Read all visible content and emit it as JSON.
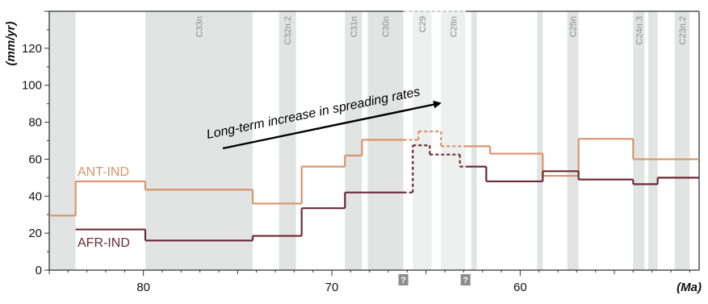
{
  "chart_data": {
    "type": "line",
    "xlabel": "(Ma)",
    "ylabel": "(mm/yr)",
    "xlim": [
      85,
      50.5
    ],
    "ylim": [
      0,
      140
    ],
    "x_ticks": [
      80,
      70,
      60
    ],
    "y_ticks": [
      0,
      20,
      40,
      60,
      80,
      100,
      120
    ],
    "grid": false,
    "annotation": "Long-term increase in spreading rates",
    "question_marks": [
      {
        "x": 66.2,
        "label": "?"
      },
      {
        "x": 62.9,
        "label": "?"
      }
    ],
    "chrons": [
      {
        "label": "",
        "start": 85.0,
        "end": 83.6,
        "shade": "dark"
      },
      {
        "label": "C33n",
        "start": 79.9,
        "end": 74.2,
        "shade": "dark"
      },
      {
        "label": "C32n.2",
        "start": 72.8,
        "end": 71.9,
        "shade": "dark"
      },
      {
        "label": "C31n",
        "start": 69.3,
        "end": 68.4,
        "shade": "dark"
      },
      {
        "label": "C30n",
        "start": 68.1,
        "end": 66.2,
        "shade": "dark"
      },
      {
        "label": "C29",
        "start": 65.7,
        "end": 64.7,
        "shade": "light"
      },
      {
        "label": "C28n",
        "start": 64.2,
        "end": 62.9,
        "shade": "light"
      },
      {
        "label": "",
        "start": 62.6,
        "end": 62.3,
        "shade": "dark"
      },
      {
        "label": "",
        "start": 59.1,
        "end": 58.8,
        "shade": "dark"
      },
      {
        "label": "C25n",
        "start": 57.5,
        "end": 56.9,
        "shade": "dark"
      },
      {
        "label": "C24n.3",
        "start": 54.0,
        "end": 53.4,
        "shade": "dark"
      },
      {
        "label": "",
        "start": 53.2,
        "end": 52.7,
        "shade": "dark"
      },
      {
        "label": "C23n.2",
        "start": 51.8,
        "end": 51.0,
        "shade": "dark"
      }
    ],
    "series": [
      {
        "name": "ANT-IND",
        "color": "#d9956a",
        "x": [
          85.0,
          83.6,
          83.6,
          79.9,
          79.9,
          74.2,
          74.2,
          71.6,
          71.6,
          69.3,
          69.3,
          68.4,
          68.4,
          66.2,
          66.2,
          65.4,
          65.4,
          64.2,
          64.2,
          62.9,
          62.9,
          61.6,
          61.6,
          58.8,
          58.8,
          56.9,
          56.9,
          54.0,
          54.0,
          50.5
        ],
        "y": [
          29.5,
          29.5,
          48.0,
          48.0,
          43.5,
          43.5,
          36.0,
          36.0,
          56.0,
          56.0,
          62.0,
          62.0,
          70.5,
          70.5,
          70.5,
          70.5,
          75.0,
          75.0,
          67.0,
          67.0,
          67.0,
          67.0,
          63.0,
          63.0,
          51.0,
          51.0,
          71.0,
          71.0,
          60.0,
          60.0
        ],
        "dashed_from_x": 66.2,
        "dashed_to_x": 62.9
      },
      {
        "name": "AFR-IND",
        "color": "#6b2a36",
        "x": [
          83.6,
          79.9,
          79.9,
          74.2,
          74.2,
          71.6,
          71.6,
          69.3,
          69.3,
          66.2,
          66.2,
          65.7,
          65.7,
          64.8,
          64.8,
          63.2,
          63.2,
          62.9,
          62.9,
          61.8,
          61.8,
          58.8,
          58.8,
          56.9,
          56.9,
          54.0,
          54.0,
          52.7,
          52.7,
          50.5
        ],
        "y": [
          22.0,
          22.0,
          16.0,
          16.0,
          18.5,
          18.5,
          33.5,
          33.5,
          42.0,
          42.0,
          42.0,
          42.0,
          67.5,
          67.5,
          62.5,
          62.5,
          56.0,
          56.0,
          56.0,
          56.0,
          48.0,
          48.0,
          53.5,
          53.5,
          49.0,
          49.0,
          46.5,
          46.5,
          50.0,
          50.0
        ],
        "dashed_from_x": 66.2,
        "dashed_to_x": 62.9
      }
    ]
  }
}
